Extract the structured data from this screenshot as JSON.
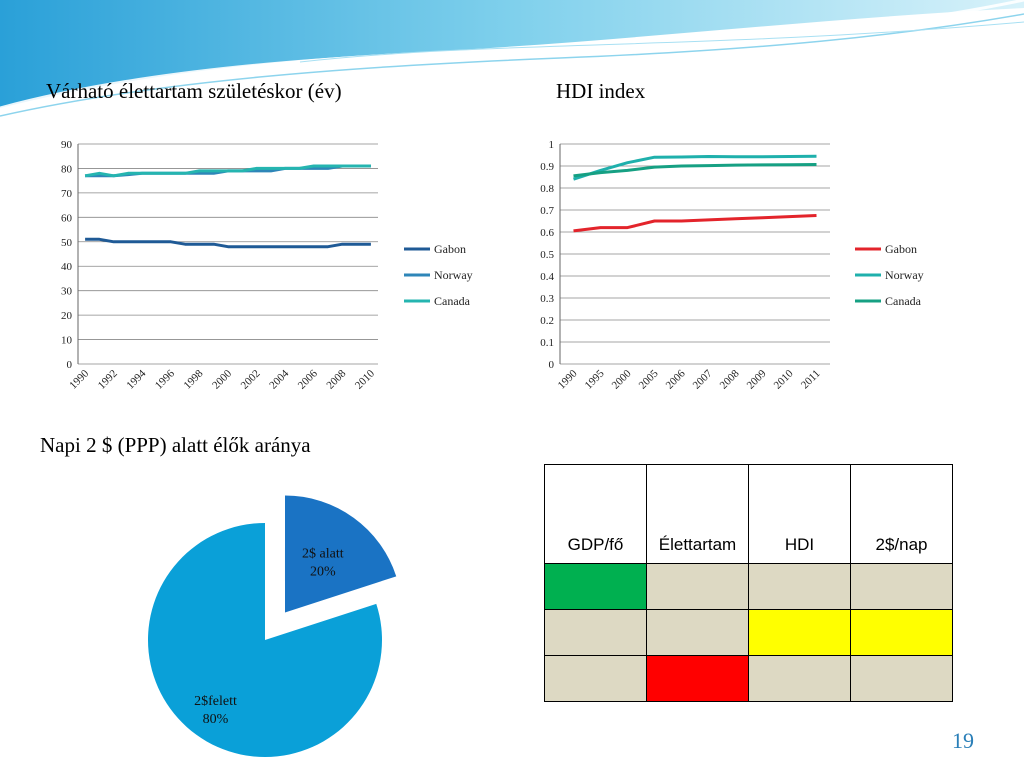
{
  "slide": {
    "page_number": "19",
    "chart1_title": "Várható élettartam születéskor (év)",
    "chart2_title": "HDI index",
    "pie_title": "Napi 2 $ (PPP) alatt élők aránya"
  },
  "table": {
    "headers": [
      "GDP/fő",
      "Élettartam",
      "HDI",
      "2$/nap"
    ],
    "rows": [
      [
        "#00b050",
        "#ddd9c3",
        "#ddd9c3",
        "#ddd9c3"
      ],
      [
        "#ddd9c3",
        "#ddd9c3",
        "#ffff00",
        "#ffff00"
      ],
      [
        "#ddd9c3",
        "#ff0000",
        "#ddd9c3",
        "#ddd9c3"
      ]
    ]
  },
  "chart_data": [
    {
      "type": "line",
      "title": "Várható élettartam születéskor (év)",
      "x": [
        "1990",
        "1991",
        "1992",
        "1993",
        "1994",
        "1995",
        "1996",
        "1997",
        "1998",
        "1999",
        "2000",
        "2001",
        "2002",
        "2003",
        "2004",
        "2005",
        "2006",
        "2007",
        "2008",
        "2009",
        "2010"
      ],
      "x_tick_labels": [
        "1990",
        "1992",
        "1994",
        "1996",
        "1998",
        "2000",
        "2002",
        "2004",
        "2006",
        "2008",
        "2010"
      ],
      "ylim": [
        0,
        90
      ],
      "yticks": [
        0,
        10,
        20,
        30,
        40,
        50,
        60,
        70,
        80,
        90
      ],
      "grid": true,
      "legend_position": "right",
      "series": [
        {
          "name": "Gabon",
          "color": "#1f5a96",
          "values": [
            51,
            51,
            50,
            50,
            50,
            50,
            50,
            49,
            49,
            49,
            48,
            48,
            48,
            48,
            48,
            48,
            48,
            48,
            49,
            49,
            49
          ]
        },
        {
          "name": "Norway",
          "color": "#2e86b8",
          "values": [
            77,
            77,
            77,
            77.5,
            78,
            78,
            78,
            78,
            78,
            78,
            79,
            79,
            79,
            79,
            80,
            80,
            80,
            80,
            81,
            81,
            81
          ]
        },
        {
          "name": "Canada",
          "color": "#25b5b0",
          "values": [
            77,
            78,
            77,
            78,
            78,
            78,
            78,
            78,
            79,
            79,
            79,
            79,
            80,
            80,
            80,
            80,
            81,
            81,
            81,
            81,
            81
          ]
        }
      ]
    },
    {
      "type": "line",
      "title": "HDI index",
      "x": [
        "1990",
        "1995",
        "2000",
        "2005",
        "2006",
        "2007",
        "2008",
        "2009",
        "2010",
        "2011"
      ],
      "ylim": [
        0,
        1
      ],
      "yticks": [
        "0",
        "0.1",
        "0.2",
        "0.3",
        "0.4",
        "0.5",
        "0.6",
        "0.7",
        "0.8",
        "0.9",
        "1"
      ],
      "grid": true,
      "legend_position": "right",
      "series": [
        {
          "name": "Gabon",
          "color": "#e3242b",
          "values": [
            0.605,
            0.62,
            0.62,
            0.65,
            0.65,
            0.655,
            0.66,
            0.665,
            0.67,
            0.675
          ]
        },
        {
          "name": "Norway",
          "color": "#1fb0ac",
          "values": [
            0.84,
            0.88,
            0.915,
            0.94,
            0.941,
            0.943,
            0.942,
            0.942,
            0.943,
            0.944
          ]
        },
        {
          "name": "Canada",
          "color": "#16a083",
          "values": [
            0.855,
            0.87,
            0.88,
            0.895,
            0.9,
            0.902,
            0.904,
            0.905,
            0.906,
            0.907
          ]
        }
      ]
    },
    {
      "type": "pie",
      "title": "Napi 2 $ (PPP) alatt élők aránya",
      "slices": [
        {
          "label": "2$ alatt",
          "value": 20,
          "display": "20%",
          "color": "#1a73c4",
          "exploded": true
        },
        {
          "label": "2$felett",
          "value": 80,
          "display": "80%",
          "color": "#0aa0d8",
          "exploded": false
        }
      ]
    }
  ]
}
